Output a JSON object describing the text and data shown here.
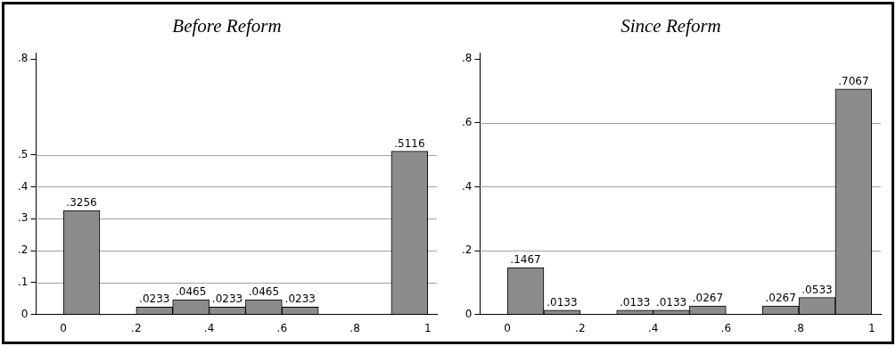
{
  "chart_data": [
    {
      "type": "histogram",
      "title": "Before Reform",
      "bins": [
        0,
        0.1,
        0.2,
        0.3,
        0.4,
        0.5,
        0.6,
        0.7,
        0.8,
        0.9,
        1
      ],
      "values": [
        0.3256,
        0,
        0.0233,
        0.0465,
        0.0233,
        0.0465,
        0.0233,
        0,
        0,
        0.5116
      ],
      "value_labels": [
        ".3256",
        null,
        ".0233",
        ".0465",
        ".0233",
        ".0465",
        ".0233",
        null,
        null,
        ".5116"
      ],
      "color": "#8c8c8c",
      "xlim": [
        -0.075,
        1.025
      ],
      "xticks": [
        {
          "value": 0,
          "label": "0"
        },
        {
          "value": 0.2,
          "label": ".2"
        },
        {
          "value": 0.4,
          "label": ".4"
        },
        {
          "value": 0.6,
          "label": ".6"
        },
        {
          "value": 0.8,
          "label": ".8"
        },
        {
          "value": 1,
          "label": "1"
        }
      ],
      "ylim": [
        0,
        0.82
      ],
      "yticks": [
        {
          "value": 0,
          "label": "0"
        },
        {
          "value": 0.1,
          "label": ".1"
        },
        {
          "value": 0.2,
          "label": ".2"
        },
        {
          "value": 0.3,
          "label": ".3"
        },
        {
          "value": 0.4,
          "label": ".4"
        },
        {
          "value": 0.5,
          "label": ".5"
        },
        {
          "value": 0.8,
          "label": ".8"
        }
      ],
      "grid": "y"
    },
    {
      "type": "histogram",
      "title": "Since Reform",
      "bins": [
        0,
        0.1,
        0.2,
        0.3,
        0.4,
        0.5,
        0.6,
        0.7,
        0.8,
        0.9,
        1
      ],
      "values": [
        0.1467,
        0.0133,
        0,
        0.0133,
        0.0133,
        0.0267,
        0,
        0.0267,
        0.0533,
        0.7067
      ],
      "value_labels": [
        ".1467",
        ".0133",
        null,
        ".0133",
        ".0133",
        ".0267",
        null,
        ".0267",
        ".0533",
        ".7067"
      ],
      "color": "#8c8c8c",
      "xlim": [
        -0.075,
        1.025
      ],
      "xticks": [
        {
          "value": 0,
          "label": "0"
        },
        {
          "value": 0.2,
          "label": ".2"
        },
        {
          "value": 0.4,
          "label": ".4"
        },
        {
          "value": 0.6,
          "label": ".6"
        },
        {
          "value": 0.8,
          "label": ".8"
        },
        {
          "value": 1,
          "label": "1"
        }
      ],
      "ylim": [
        0,
        0.82
      ],
      "yticks": [
        {
          "value": 0,
          "label": "0"
        },
        {
          "value": 0.2,
          "label": ".2"
        },
        {
          "value": 0.4,
          "label": ".4"
        },
        {
          "value": 0.6,
          "label": ".6"
        },
        {
          "value": 0.8,
          "label": ".8"
        }
      ],
      "grid": "y"
    }
  ]
}
